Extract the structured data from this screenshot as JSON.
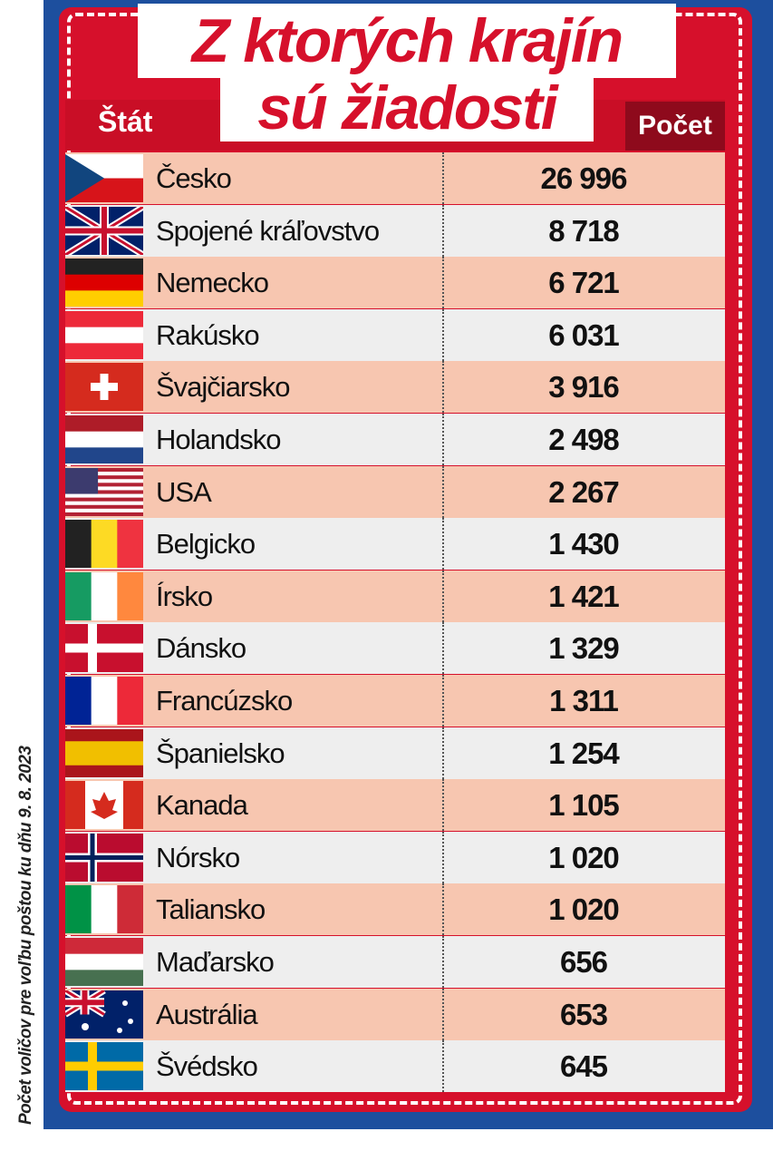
{
  "title": {
    "line1": "Z ktorých krajín",
    "line2": "sú žiadosti"
  },
  "table": {
    "header": [
      "Štát",
      "Počet"
    ],
    "rows": [
      [
        "Česko",
        "26 996"
      ],
      [
        "Spojené kráľovstvo",
        "8 718"
      ],
      [
        "Nemecko",
        "6 721"
      ],
      [
        "Rakúsko",
        "6 031"
      ],
      [
        "Švajčiarsko",
        "3 916"
      ],
      [
        "Holandsko",
        "2 498"
      ],
      [
        "USA",
        "2 267"
      ],
      [
        "Belgicko",
        "1 430"
      ],
      [
        "Írsko",
        "1 421"
      ],
      [
        "Dánsko",
        "1 329"
      ],
      [
        "Francúzsko",
        "1 311"
      ],
      [
        "Španielsko",
        "1 254"
      ],
      [
        "Kanada",
        "1 105"
      ],
      [
        "Nórsko",
        "1 020"
      ],
      [
        "Taliansko",
        "1 020"
      ],
      [
        "Maďarsko",
        "656"
      ],
      [
        "Austrália",
        "653"
      ],
      [
        "Švédsko",
        "645"
      ]
    ]
  },
  "note": "Počet voličov pre voľbu poštou ku dňu 9. 8. 2023"
}
